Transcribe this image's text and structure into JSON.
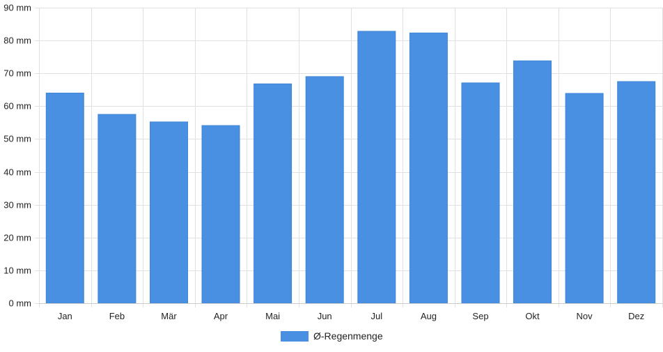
{
  "chart_data": {
    "type": "bar",
    "title": "",
    "xlabel": "",
    "ylabel": "",
    "unit": "mm",
    "categories": [
      "Jan",
      "Feb",
      "Mär",
      "Apr",
      "Mai",
      "Jun",
      "Jul",
      "Aug",
      "Sep",
      "Okt",
      "Nov",
      "Dez"
    ],
    "series": [
      {
        "name": "Ø-Regenmenge",
        "color": "#4a90e2",
        "values": [
          64,
          57.5,
          55.2,
          54.1,
          66.8,
          69,
          82.8,
          82.3,
          67.1,
          73.8,
          63.9,
          67.5
        ]
      }
    ],
    "ylim": [
      0,
      90
    ],
    "yticks": [
      "0 mm",
      "10 mm",
      "20 mm",
      "30 mm",
      "40 mm",
      "50 mm",
      "60 mm",
      "70 mm",
      "80 mm",
      "90 mm"
    ],
    "grid": true,
    "legend_position": "bottom-center"
  }
}
